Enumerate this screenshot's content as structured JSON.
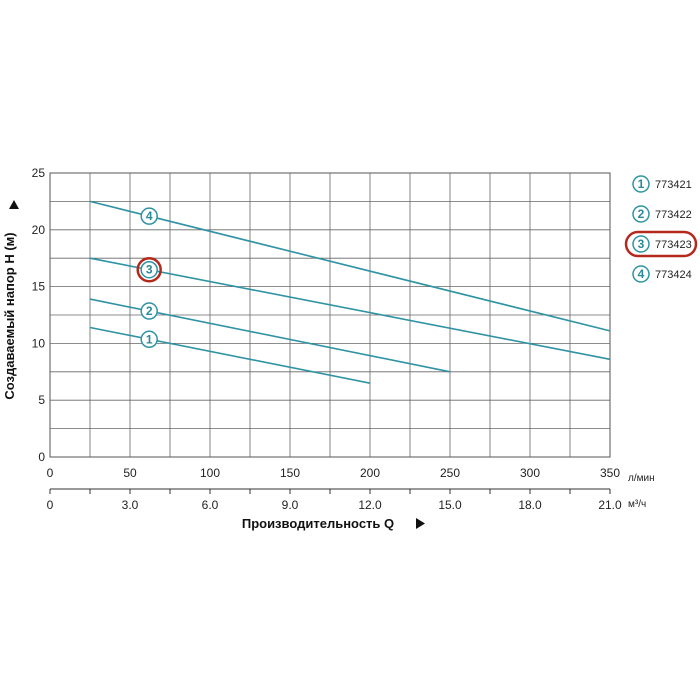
{
  "chart_data": {
    "type": "line",
    "xlabel": "Производительность Q",
    "ylabel": "Создаваемый напор H (м)",
    "x_unit": "л/мин",
    "x2_unit": "м³/ч",
    "xlim": [
      0,
      350
    ],
    "ylim": [
      0,
      25
    ],
    "x_ticks": [
      "0",
      "50",
      "100",
      "150",
      "200",
      "250",
      "300",
      "350"
    ],
    "x_tick_values": [
      0,
      50,
      100,
      150,
      200,
      250,
      300,
      350
    ],
    "x2_ticks": [
      "0",
      "3.0",
      "6.0",
      "9.0",
      "12.0",
      "15.0",
      "18.0",
      "21.0"
    ],
    "y_ticks": [
      "0",
      "5",
      "10",
      "15",
      "20",
      "25"
    ],
    "y_tick_values": [
      0,
      5,
      10,
      15,
      20,
      25
    ],
    "grid": true,
    "line_color": "#2f93a3",
    "highlight_color": "#b5281c",
    "series": [
      {
        "name": "773421",
        "marker": "1",
        "x": [
          25,
          200
        ],
        "y": [
          11.4,
          6.5
        ],
        "marker_x": 62,
        "highlighted": false
      },
      {
        "name": "773422",
        "marker": "2",
        "x": [
          25,
          250
        ],
        "y": [
          13.9,
          7.5
        ],
        "marker_x": 62,
        "highlighted": false
      },
      {
        "name": "773423",
        "marker": "3",
        "x": [
          25,
          350
        ],
        "y": [
          17.5,
          8.6
        ],
        "marker_x": 62,
        "highlighted": true
      },
      {
        "name": "773424",
        "marker": "4",
        "x": [
          25,
          350
        ],
        "y": [
          22.5,
          11.1
        ],
        "marker_x": 62,
        "highlighted": false
      }
    ],
    "legend_placement": "right"
  }
}
